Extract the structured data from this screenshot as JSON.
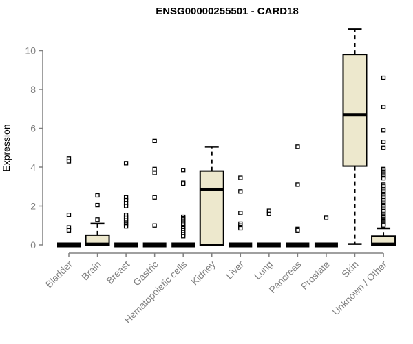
{
  "chart_data": {
    "type": "boxplot",
    "title": "ENSG00000255501 - CARD18",
    "ylabel": "Expression",
    "xlabel": "",
    "ylim": [
      0,
      11.3
    ],
    "yticks": [
      0,
      2,
      4,
      6,
      8,
      10
    ],
    "grid": "off",
    "legend": "none",
    "colors": {
      "box_fill": "#EDE8CD",
      "box_stroke": "#000000",
      "axis_color": "#808080",
      "title_color": "#000000",
      "background": "#ffffff"
    },
    "categories": [
      "Bladder",
      "Brain",
      "Breast",
      "Gastric",
      "Hematopoietic cells",
      "Kidney",
      "Liver",
      "Lung",
      "Pancreas",
      "Prostate",
      "Skin",
      "Unknown / Other"
    ],
    "boxes": [
      {
        "category": "Bladder",
        "min": 0,
        "q1": 0,
        "median": 0,
        "q3": 0,
        "max": 0,
        "outliers": [
          4.45,
          4.3,
          1.55,
          0.9,
          0.75
        ]
      },
      {
        "category": "Brain",
        "min": 0,
        "q1": 0,
        "median": 0.03,
        "q3": 0.5,
        "max": 1.1,
        "outliers": [
          2.55,
          2.05,
          1.3
        ]
      },
      {
        "category": "Breast",
        "min": 0,
        "q1": 0,
        "median": 0,
        "q3": 0,
        "max": 0,
        "outliers": [
          4.2,
          2.45,
          2.3,
          2.15,
          2.0,
          1.55,
          1.45,
          1.35,
          1.25,
          1.15,
          1.05,
          0.95
        ]
      },
      {
        "category": "Gastric",
        "min": 0,
        "q1": 0,
        "median": 0,
        "q3": 0,
        "max": 0,
        "outliers": [
          5.35,
          3.9,
          3.7,
          2.45,
          1.0
        ]
      },
      {
        "category": "Hematopoietic cells",
        "min": 0,
        "q1": 0,
        "median": 0,
        "q3": 0,
        "max": 0,
        "outliers": [
          3.85,
          3.2,
          3.15,
          1.45,
          1.38,
          1.3,
          1.22,
          1.15,
          1.08,
          1.0,
          0.92,
          0.85,
          0.75,
          0.65,
          0.55,
          0.45
        ]
      },
      {
        "category": "Kidney",
        "min": 0,
        "q1": 0,
        "median": 2.85,
        "q3": 3.8,
        "max": 5.05,
        "outliers": []
      },
      {
        "category": "Liver",
        "min": 0,
        "q1": 0,
        "median": 0,
        "q3": 0,
        "max": 0,
        "outliers": [
          3.45,
          2.75,
          1.65,
          1.1,
          1.0,
          0.92,
          0.85
        ]
      },
      {
        "category": "Lung",
        "min": 0,
        "q1": 0,
        "median": 0,
        "q3": 0,
        "max": 0,
        "outliers": [
          1.75,
          1.6
        ]
      },
      {
        "category": "Pancreas",
        "min": 0,
        "q1": 0,
        "median": 0,
        "q3": 0,
        "max": 0,
        "outliers": [
          5.05,
          3.1,
          0.82,
          0.75
        ]
      },
      {
        "category": "Prostate",
        "min": 0,
        "q1": 0,
        "median": 0,
        "q3": 0,
        "max": 0,
        "outliers": [
          1.4
        ]
      },
      {
        "category": "Skin",
        "min": 0.05,
        "q1": 4.05,
        "median": 6.7,
        "q3": 9.8,
        "max": 11.1,
        "outliers": []
      },
      {
        "category": "Unknown / Other",
        "min": 0,
        "q1": 0,
        "median": 0.03,
        "q3": 0.45,
        "max": 0.85,
        "outliers": [
          8.6,
          7.1,
          5.9,
          5.3,
          5.0,
          3.9,
          3.83,
          3.76,
          3.7,
          3.63,
          3.56,
          3.5,
          3.43,
          3.1,
          3.02,
          2.94,
          2.86,
          2.78,
          2.7,
          2.62,
          2.54,
          2.46,
          2.38,
          2.3,
          2.22,
          2.14,
          2.06,
          1.98,
          1.9,
          1.82,
          1.74,
          1.66,
          1.58,
          1.5,
          1.42,
          1.35,
          1.3,
          1.25,
          1.2,
          1.15,
          1.1,
          1.05,
          1.0
        ]
      }
    ]
  }
}
